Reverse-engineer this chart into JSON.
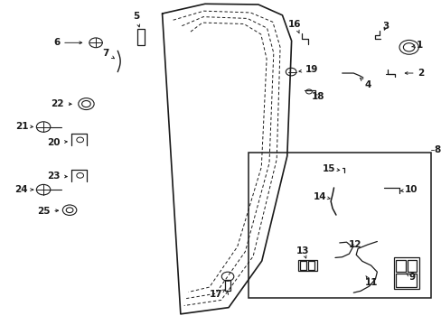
{
  "bg_color": "#ffffff",
  "line_color": "#1a1a1a",
  "label_fontsize": 7.5,
  "fig_width": 4.89,
  "fig_height": 3.6,
  "labels": {
    "1": [
      0.96,
      0.862,
      0.935,
      0.856
    ],
    "2": [
      0.963,
      0.776,
      0.918,
      0.776
    ],
    "3": [
      0.882,
      0.92,
      0.875,
      0.9
    ],
    "4": [
      0.84,
      0.74,
      0.822,
      0.762
    ],
    "5": [
      0.31,
      0.952,
      0.318,
      0.916
    ],
    "6": [
      0.128,
      0.87,
      0.194,
      0.87
    ],
    "7": [
      0.24,
      0.838,
      0.262,
      0.82
    ],
    "9": [
      0.943,
      0.145,
      0.928,
      0.158
    ],
    "10": [
      0.94,
      0.415,
      0.914,
      0.412
    ],
    "11": [
      0.848,
      0.128,
      0.836,
      0.15
    ],
    "12": [
      0.812,
      0.246,
      0.798,
      0.234
    ],
    "13": [
      0.692,
      0.228,
      0.7,
      0.202
    ],
    "14": [
      0.732,
      0.395,
      0.756,
      0.388
    ],
    "15": [
      0.752,
      0.48,
      0.778,
      0.476
    ],
    "16": [
      0.674,
      0.928,
      0.684,
      0.898
    ],
    "17": [
      0.494,
      0.092,
      0.515,
      0.108
    ],
    "18": [
      0.727,
      0.704,
      0.712,
      0.714
    ],
    "19": [
      0.712,
      0.787,
      0.681,
      0.781
    ],
    "20": [
      0.122,
      0.562,
      0.16,
      0.565
    ],
    "21": [
      0.05,
      0.612,
      0.076,
      0.61
    ],
    "22": [
      0.13,
      0.682,
      0.17,
      0.68
    ],
    "23": [
      0.122,
      0.458,
      0.16,
      0.456
    ],
    "24": [
      0.047,
      0.416,
      0.076,
      0.416
    ],
    "25": [
      0.098,
      0.35,
      0.14,
      0.352
    ]
  }
}
